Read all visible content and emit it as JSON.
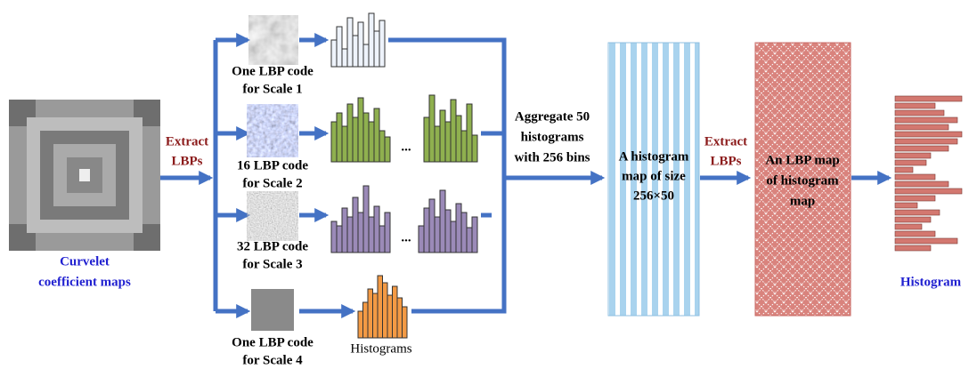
{
  "input": {
    "label": [
      "Curvelet",
      "coefficient maps"
    ]
  },
  "extract_labels": [
    [
      "Extract",
      "LBPs"
    ],
    [
      "Extract",
      "LBPs"
    ]
  ],
  "scales": [
    {
      "label": [
        "One LBP code",
        "for Scale 1"
      ]
    },
    {
      "label": [
        "16 LBP code",
        "for Scale 2"
      ]
    },
    {
      "label": [
        "32 LBP code",
        "for Scale 3"
      ]
    },
    {
      "label": [
        "One LBP code",
        "for Scale 4"
      ]
    }
  ],
  "ellipses": [
    "...",
    "..."
  ],
  "histograms_label": "Histograms",
  "aggregate": {
    "label": [
      "Aggregate 50",
      "histograms",
      "with 256 bins"
    ]
  },
  "histogram_map": {
    "label": [
      "A histogram",
      "map of size",
      "256×50"
    ]
  },
  "lbp_map": {
    "label": [
      "An LBP map",
      "of histogram",
      "map"
    ]
  },
  "output": {
    "label": "Histogram"
  }
}
